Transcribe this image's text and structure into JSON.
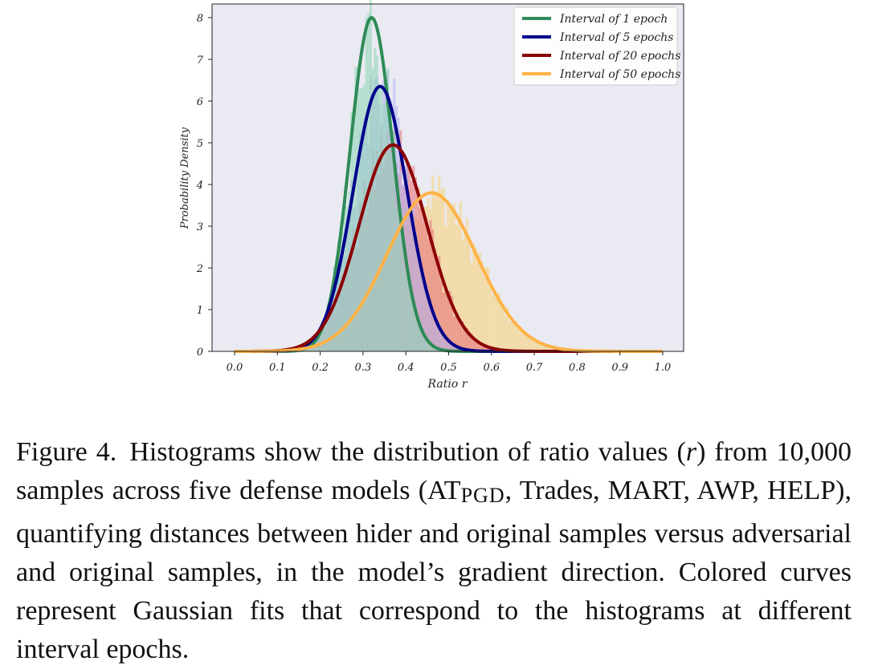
{
  "chart_data": {
    "type": "histogram+gaussian-fit",
    "xlabel": "Ratio r",
    "ylabel": "Probability Density",
    "xlim": [
      -0.05,
      1.05
    ],
    "ylim": [
      0,
      8.3
    ],
    "x_ticks": [
      "0.0",
      "0.1",
      "0.2",
      "0.3",
      "0.4",
      "0.5",
      "0.6",
      "0.7",
      "0.8",
      "0.9",
      "1.0"
    ],
    "x_tick_values": [
      0.0,
      0.1,
      0.2,
      0.3,
      0.4,
      0.5,
      0.6,
      0.7,
      0.8,
      0.9,
      1.0
    ],
    "y_ticks": [
      "0",
      "1",
      "2",
      "3",
      "4",
      "5",
      "6",
      "7",
      "8"
    ],
    "y_tick_values": [
      0,
      1,
      2,
      3,
      4,
      5,
      6,
      7,
      8
    ],
    "legend_position": "top-right",
    "series": [
      {
        "name": "Interval of 1 epoch",
        "color": "#2e8b57",
        "hist_color": "#8fd6b6",
        "mean": 0.32,
        "std": 0.05,
        "peak": 8.0
      },
      {
        "name": "Interval of 5 epochs",
        "color": "#00008b",
        "hist_color": "#b3b3f0",
        "mean": 0.34,
        "std": 0.063,
        "peak": 6.35
      },
      {
        "name": "Interval of 20 epochs",
        "color": "#8b0000",
        "hist_color": "#e8737a",
        "mean": 0.37,
        "std": 0.08,
        "peak": 4.95
      },
      {
        "name": "Interval of 50 epochs",
        "color": "#ffb347",
        "hist_color": "#f5d27a",
        "mean": 0.46,
        "std": 0.105,
        "peak": 3.8
      }
    ]
  },
  "caption": {
    "label": "Figure 4.",
    "text_1": "Histograms show the distribution of ratio values (",
    "r_symbol": "r",
    "text_2": ") from 10,000 samples across five defense models (AT",
    "pgd_sub": "PGD",
    "text_3": ", Trades, MART, AWP, HELP), quantifying distances between hider and original samples versus adversarial and original samples, in the model’s gradient direction. Colored curves represent Gaussian fits that correspond to the histograms at different interval epochs."
  }
}
